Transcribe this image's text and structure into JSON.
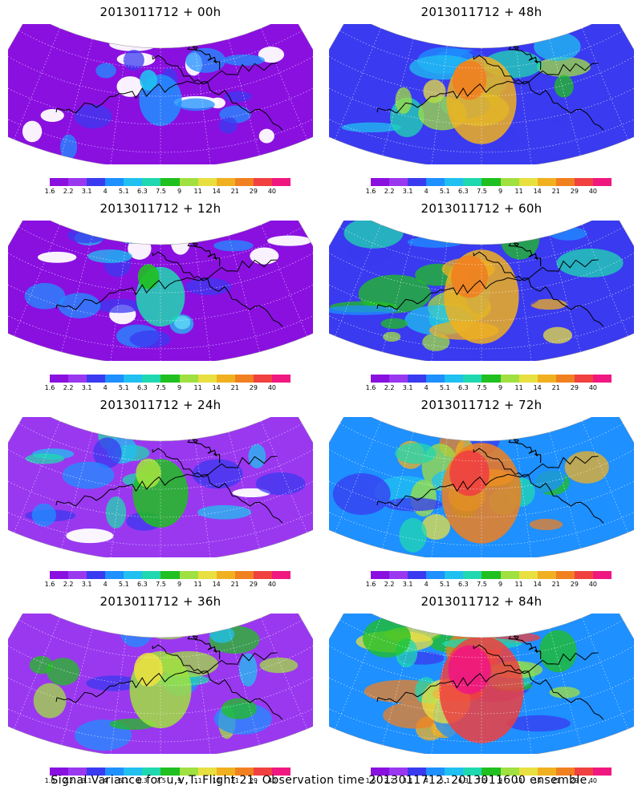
{
  "colorbar": {
    "labels": [
      "1.6",
      "2.2",
      "3.1",
      "4",
      "5.1",
      "6.3",
      "7.5",
      "9",
      "11",
      "14",
      "21",
      "29",
      "40"
    ],
    "colors": [
      "#8a10e0",
      "#9a38f0",
      "#3a3af0",
      "#1e90ff",
      "#20c0f0",
      "#20d8b0",
      "#20c020",
      "#a0e040",
      "#e8e040",
      "#f0b020",
      "#f08020",
      "#f04040",
      "#f01880"
    ]
  },
  "panels": [
    {
      "id": "p00",
      "title": "2013011712 + 00h",
      "level": 0.05
    },
    {
      "id": "p48",
      "title": "2013011712 + 48h",
      "level": 0.62
    },
    {
      "id": "p12",
      "title": "2013011712 + 12h",
      "level": 0.18
    },
    {
      "id": "p60",
      "title": "2013011712 + 60h",
      "level": 0.72
    },
    {
      "id": "p24",
      "title": "2013011712 + 24h",
      "level": 0.32
    },
    {
      "id": "p72",
      "title": "2013011712 + 72h",
      "level": 0.82
    },
    {
      "id": "p36",
      "title": "2013011712 + 36h",
      "level": 0.45
    },
    {
      "id": "p84",
      "title": "2013011712 + 84h",
      "level": 0.92
    }
  ],
  "footer": "Signal Variance for u,v,T. Flight 21. Observation time 2013011712. 2013011600 ensemble."
}
